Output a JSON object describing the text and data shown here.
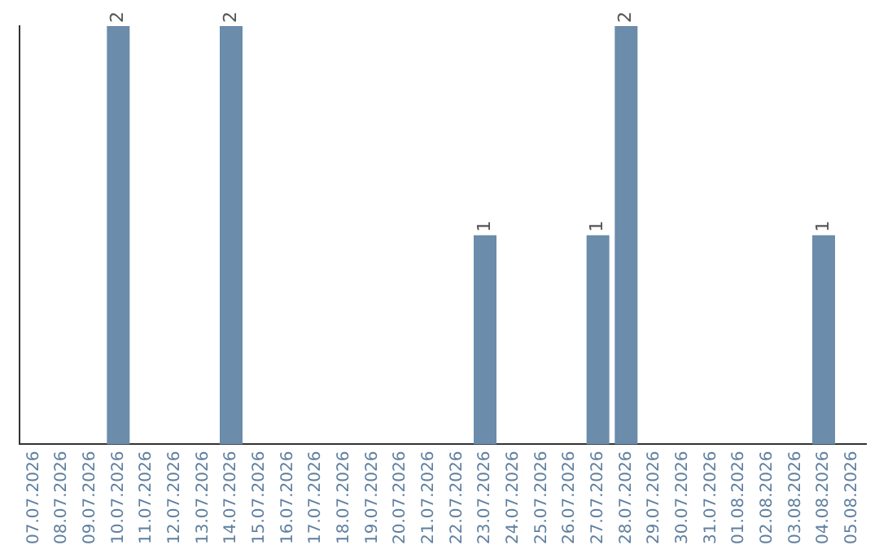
{
  "chart_data": {
    "type": "bar",
    "categories": [
      "07.07.2026",
      "08.07.2026",
      "09.07.2026",
      "10.07.2026",
      "11.07.2026",
      "12.07.2026",
      "13.07.2026",
      "14.07.2026",
      "15.07.2026",
      "16.07.2026",
      "17.07.2026",
      "18.07.2026",
      "19.07.2026",
      "20.07.2026",
      "21.07.2026",
      "22.07.2026",
      "23.07.2026",
      "24.07.2026",
      "25.07.2026",
      "26.07.2026",
      "27.07.2026",
      "28.07.2026",
      "29.07.2026",
      "30.07.2026",
      "31.07.2026",
      "01.08.2026",
      "02.08.2026",
      "03.08.2026",
      "04.08.2026",
      "05.08.2026"
    ],
    "values": [
      0,
      0,
      0,
      2,
      0,
      0,
      0,
      2,
      0,
      0,
      0,
      0,
      0,
      0,
      0,
      0,
      1,
      0,
      0,
      0,
      1,
      2,
      0,
      0,
      0,
      0,
      0,
      0,
      1,
      0
    ],
    "value_labels": [
      null,
      null,
      null,
      "2",
      null,
      null,
      null,
      "2",
      null,
      null,
      null,
      null,
      null,
      null,
      null,
      null,
      "1",
      null,
      null,
      null,
      "1",
      "2",
      null,
      null,
      null,
      null,
      null,
      null,
      "1",
      null
    ],
    "color": "#6b8cab",
    "grid": false,
    "legend": false,
    "tick_labels": "x"
  }
}
